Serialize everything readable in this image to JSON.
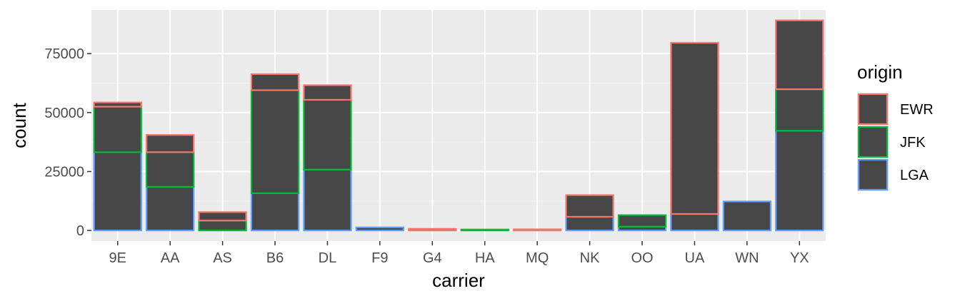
{
  "chart_data": {
    "type": "bar",
    "stacked": true,
    "xlabel": "carrier",
    "ylabel": "count",
    "categories": [
      "9E",
      "AA",
      "AS",
      "B6",
      "DL",
      "F9",
      "G4",
      "HA",
      "MQ",
      "NK",
      "OO",
      "UA",
      "WN",
      "YX"
    ],
    "series": [
      {
        "name": "LGA",
        "color": "#619CFF",
        "values": [
          33200,
          18500,
          0,
          15800,
          25800,
          1300,
          0,
          0,
          0,
          5800,
          1600,
          7000,
          12300,
          42300
        ]
      },
      {
        "name": "JFK",
        "color": "#00BA38",
        "values": [
          19300,
          14700,
          4200,
          43700,
          29600,
          0,
          0,
          400,
          0,
          0,
          4900,
          0,
          0,
          17600
        ]
      },
      {
        "name": "EWR",
        "color": "#F8766D",
        "values": [
          1800,
          7300,
          3600,
          6800,
          6200,
          0,
          700,
          0,
          500,
          9200,
          0,
          72600,
          0,
          29200
        ]
      }
    ],
    "stack_order_bottom_to_top": [
      "LGA",
      "JFK",
      "EWR"
    ],
    "fill_color": "#474747",
    "ylim": [
      -4500,
      93500
    ],
    "yticks": [
      0,
      25000,
      50000,
      75000
    ],
    "ytick_labels": [
      "0",
      "25000",
      "50000",
      "75000"
    ],
    "panel_background": "#EBEBEB",
    "grid": true,
    "legend": {
      "title": "origin",
      "position": "right",
      "items": [
        "EWR",
        "JFK",
        "LGA"
      ]
    }
  }
}
